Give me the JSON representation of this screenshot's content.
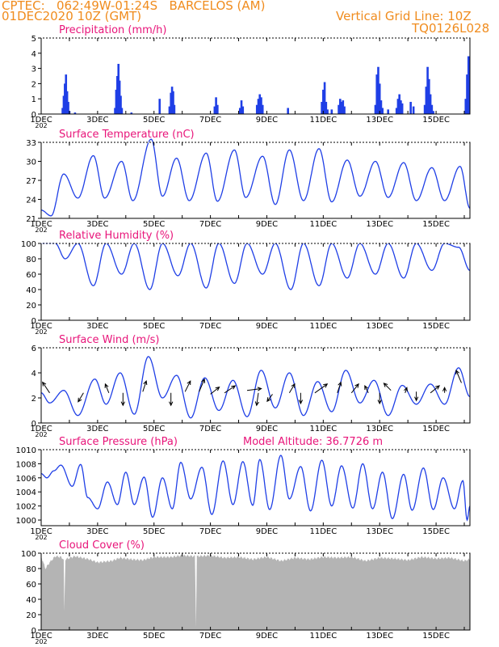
{
  "header": {
    "line1": "CPTEC:   062:49W-01:24S   BARCELOS (AM)",
    "line2": "01DEC2020 10Z (GMT)",
    "grid_note": "Vertical Grid Line: 10Z",
    "code": "TQ0126L028"
  },
  "colors": {
    "header": "#f08c1e",
    "title": "#e8157a",
    "series": "#1f3fe6",
    "cloud": "#b4b4b4",
    "axis": "#000000"
  },
  "x_axis": {
    "ticks": [
      {
        "day": 1,
        "label": "1DEC"
      },
      {
        "day": 3,
        "label": "3DEC"
      },
      {
        "day": 5,
        "label": "5DEC"
      },
      {
        "day": 7,
        "label": "7DEC"
      },
      {
        "day": 9,
        "label": "9DEC"
      },
      {
        "day": 11,
        "label": "11DEC"
      },
      {
        "day": 13,
        "label": "13DEC"
      },
      {
        "day": 15,
        "label": "15DEC"
      }
    ],
    "cut_label": "202"
  },
  "chart_data": [
    {
      "id": "precip",
      "type": "bar",
      "title": "Precipitation (mm/h)",
      "ylim": [
        0,
        5
      ],
      "yticks": [
        0,
        1,
        2,
        3,
        4,
        5
      ],
      "x_range_days": [
        1,
        16.2
      ],
      "hourly_points": [
        [
          1.76,
          0.4
        ],
        [
          1.8,
          1.2
        ],
        [
          1.84,
          2.0
        ],
        [
          1.88,
          2.6
        ],
        [
          1.92,
          1.5
        ],
        [
          1.96,
          0.8
        ],
        [
          2.0,
          0.2
        ],
        [
          2.2,
          0.1
        ],
        [
          3.62,
          0.4
        ],
        [
          3.66,
          1.6
        ],
        [
          3.7,
          2.5
        ],
        [
          3.74,
          3.3
        ],
        [
          3.78,
          2.2
        ],
        [
          3.82,
          1.2
        ],
        [
          3.86,
          0.4
        ],
        [
          4.2,
          0.1
        ],
        [
          5.2,
          1.0
        ],
        [
          5.55,
          0.5
        ],
        [
          5.6,
          1.4
        ],
        [
          5.64,
          1.8
        ],
        [
          5.68,
          1.5
        ],
        [
          5.72,
          0.6
        ],
        [
          7.15,
          0.5
        ],
        [
          7.2,
          1.1
        ],
        [
          7.25,
          0.6
        ],
        [
          8.05,
          0.4
        ],
        [
          8.1,
          0.9
        ],
        [
          8.15,
          0.5
        ],
        [
          8.65,
          0.6
        ],
        [
          8.7,
          1.0
        ],
        [
          8.75,
          1.3
        ],
        [
          8.8,
          1.1
        ],
        [
          8.85,
          0.6
        ],
        [
          9.75,
          0.4
        ],
        [
          10.95,
          0.8
        ],
        [
          11.0,
          1.6
        ],
        [
          11.05,
          2.1
        ],
        [
          11.1,
          0.8
        ],
        [
          11.15,
          0.3
        ],
        [
          11.3,
          0.3
        ],
        [
          11.55,
          0.6
        ],
        [
          11.6,
          1.0
        ],
        [
          11.65,
          0.8
        ],
        [
          11.7,
          0.9
        ],
        [
          11.75,
          0.5
        ],
        [
          12.85,
          0.6
        ],
        [
          12.9,
          2.6
        ],
        [
          12.95,
          3.1
        ],
        [
          13.0,
          2.0
        ],
        [
          13.05,
          0.9
        ],
        [
          13.1,
          0.4
        ],
        [
          13.3,
          0.3
        ],
        [
          13.6,
          0.4
        ],
        [
          13.65,
          1.0
        ],
        [
          13.7,
          1.3
        ],
        [
          13.75,
          0.9
        ],
        [
          13.8,
          0.7
        ],
        [
          14.1,
          0.8
        ],
        [
          14.2,
          0.5
        ],
        [
          14.6,
          0.6
        ],
        [
          14.65,
          1.8
        ],
        [
          14.7,
          3.1
        ],
        [
          14.75,
          2.3
        ],
        [
          14.8,
          1.3
        ],
        [
          14.85,
          0.6
        ],
        [
          14.9,
          0.2
        ],
        [
          16.05,
          1.0
        ],
        [
          16.1,
          2.6
        ],
        [
          16.15,
          3.8
        ]
      ]
    },
    {
      "id": "temp",
      "type": "line",
      "title": "Surface Temperature (nC)",
      "ylim": [
        21,
        33
      ],
      "yticks": [
        21,
        24,
        27,
        30,
        33
      ],
      "peaks_troughs": [
        [
          1.0,
          22.3
        ],
        [
          1.35,
          21.4
        ],
        [
          1.8,
          28.0
        ],
        [
          2.3,
          24.2
        ],
        [
          2.85,
          30.9
        ],
        [
          3.25,
          24.2
        ],
        [
          3.85,
          30.0
        ],
        [
          4.25,
          23.8
        ],
        [
          4.9,
          33.5
        ],
        [
          5.3,
          24.5
        ],
        [
          5.8,
          30.5
        ],
        [
          6.25,
          23.8
        ],
        [
          6.85,
          31.3
        ],
        [
          7.25,
          23.7
        ],
        [
          7.85,
          31.8
        ],
        [
          8.25,
          24.3
        ],
        [
          8.85,
          30.8
        ],
        [
          9.3,
          23.2
        ],
        [
          9.8,
          31.8
        ],
        [
          10.3,
          23.8
        ],
        [
          10.85,
          32.0
        ],
        [
          11.3,
          23.6
        ],
        [
          11.85,
          30.2
        ],
        [
          12.3,
          24.5
        ],
        [
          12.85,
          30.0
        ],
        [
          13.3,
          24.3
        ],
        [
          13.85,
          29.8
        ],
        [
          14.3,
          23.8
        ],
        [
          14.85,
          29.0
        ],
        [
          15.3,
          23.8
        ],
        [
          15.85,
          29.2
        ],
        [
          16.2,
          22.6
        ]
      ]
    },
    {
      "id": "humidity",
      "type": "line",
      "title": "Relative Humidity (%)",
      "ylim": [
        0,
        100
      ],
      "yticks": [
        0,
        20,
        40,
        60,
        80,
        100
      ],
      "peaks_troughs": [
        [
          1.0,
          100
        ],
        [
          1.5,
          100
        ],
        [
          1.85,
          80
        ],
        [
          2.3,
          100
        ],
        [
          2.85,
          45
        ],
        [
          3.3,
          100
        ],
        [
          3.85,
          60
        ],
        [
          4.3,
          100
        ],
        [
          4.85,
          40
        ],
        [
          5.3,
          100
        ],
        [
          5.85,
          58
        ],
        [
          6.3,
          100
        ],
        [
          6.85,
          42
        ],
        [
          7.3,
          100
        ],
        [
          7.85,
          48
        ],
        [
          8.3,
          100
        ],
        [
          8.85,
          60
        ],
        [
          9.3,
          100
        ],
        [
          9.85,
          40
        ],
        [
          10.3,
          100
        ],
        [
          10.85,
          45
        ],
        [
          11.3,
          100
        ],
        [
          11.85,
          55
        ],
        [
          12.3,
          100
        ],
        [
          12.85,
          60
        ],
        [
          13.3,
          100
        ],
        [
          13.85,
          55
        ],
        [
          14.3,
          100
        ],
        [
          14.85,
          65
        ],
        [
          15.3,
          100
        ],
        [
          15.8,
          95
        ],
        [
          16.2,
          65
        ]
      ]
    },
    {
      "id": "wind",
      "type": "line",
      "title": "Surface Wind (m/s)",
      "ylim": [
        0,
        6
      ],
      "yticks": [
        0,
        2,
        4,
        6
      ],
      "peaks_troughs": [
        [
          1.0,
          2.4
        ],
        [
          1.3,
          1.6
        ],
        [
          1.8,
          2.6
        ],
        [
          2.3,
          0.6
        ],
        [
          2.9,
          3.5
        ],
        [
          3.3,
          1.5
        ],
        [
          3.8,
          4.0
        ],
        [
          4.3,
          0.7
        ],
        [
          4.8,
          5.3
        ],
        [
          5.3,
          2.0
        ],
        [
          5.8,
          3.8
        ],
        [
          6.3,
          0.4
        ],
        [
          6.8,
          3.6
        ],
        [
          7.3,
          1.0
        ],
        [
          7.8,
          3.4
        ],
        [
          8.3,
          0.5
        ],
        [
          8.8,
          4.2
        ],
        [
          9.3,
          1.2
        ],
        [
          9.8,
          4.0
        ],
        [
          10.3,
          0.6
        ],
        [
          10.8,
          3.3
        ],
        [
          11.3,
          0.9
        ],
        [
          11.8,
          4.2
        ],
        [
          12.3,
          1.6
        ],
        [
          12.8,
          3.4
        ],
        [
          13.3,
          0.6
        ],
        [
          13.8,
          3.0
        ],
        [
          14.3,
          1.5
        ],
        [
          14.8,
          3.1
        ],
        [
          15.3,
          1.5
        ],
        [
          15.8,
          4.4
        ],
        [
          16.2,
          2.1
        ]
      ],
      "arrows": [
        [
          1.3,
          2.4,
          -0.4,
          0.6
        ],
        [
          2.5,
          2.4,
          -0.3,
          -0.5
        ],
        [
          3.4,
          2.4,
          -0.2,
          0.5
        ],
        [
          3.9,
          2.4,
          0.0,
          -0.7
        ],
        [
          4.6,
          2.5,
          0.2,
          0.6
        ],
        [
          5.6,
          2.4,
          0.0,
          -0.7
        ],
        [
          6.1,
          2.5,
          0.3,
          0.6
        ],
        [
          6.6,
          2.5,
          0.3,
          0.7
        ],
        [
          7.0,
          2.3,
          0.5,
          0.4
        ],
        [
          7.5,
          2.4,
          0.6,
          0.4
        ],
        [
          8.3,
          2.6,
          0.8,
          0.1
        ],
        [
          8.7,
          2.4,
          -0.1,
          -0.7
        ],
        [
          9.2,
          2.3,
          -0.3,
          -0.4
        ],
        [
          9.8,
          2.4,
          0.3,
          0.5
        ],
        [
          10.2,
          2.4,
          0.0,
          -0.6
        ],
        [
          10.7,
          2.4,
          0.7,
          0.5
        ],
        [
          11.5,
          2.4,
          0.2,
          0.6
        ],
        [
          12.0,
          2.4,
          0.4,
          0.5
        ],
        [
          12.6,
          2.4,
          -0.2,
          0.4
        ],
        [
          13.0,
          2.4,
          0.0,
          -0.6
        ],
        [
          13.4,
          2.6,
          -0.4,
          0.4
        ],
        [
          13.9,
          2.4,
          0.1,
          0.3
        ],
        [
          14.3,
          2.5,
          0.0,
          -0.5
        ],
        [
          14.8,
          2.4,
          0.5,
          0.4
        ],
        [
          15.3,
          2.4,
          0.0,
          0.3
        ],
        [
          15.9,
          3.2,
          -0.3,
          0.7
        ]
      ]
    },
    {
      "id": "pressure",
      "type": "line",
      "title": "Surface Pressure (hPa)",
      "annotation": "Model Altitude: 36.7726 m",
      "ylim": [
        999.2,
        1010
      ],
      "yticks": [
        1000,
        1002,
        1004,
        1006,
        1008,
        1010
      ],
      "peaks_troughs": [
        [
          1.0,
          1006.6
        ],
        [
          1.2,
          1006.0
        ],
        [
          1.45,
          1007.0
        ],
        [
          1.7,
          1007.8
        ],
        [
          2.1,
          1004.8
        ],
        [
          2.4,
          1007.9
        ],
        [
          2.65,
          1003.2
        ],
        [
          3.0,
          1001.6
        ],
        [
          3.35,
          1005.4
        ],
        [
          3.7,
          1002.2
        ],
        [
          4.0,
          1006.8
        ],
        [
          4.3,
          1002.2
        ],
        [
          4.65,
          1006.1
        ],
        [
          4.95,
          1000.4
        ],
        [
          5.3,
          1006.0
        ],
        [
          5.65,
          1001.6
        ],
        [
          5.95,
          1008.2
        ],
        [
          6.3,
          1003.0
        ],
        [
          6.7,
          1007.5
        ],
        [
          7.05,
          1000.8
        ],
        [
          7.45,
          1008.4
        ],
        [
          7.8,
          1002.2
        ],
        [
          8.15,
          1008.3
        ],
        [
          8.5,
          1002.1
        ],
        [
          8.75,
          1008.6
        ],
        [
          9.1,
          1001.5
        ],
        [
          9.5,
          1009.2
        ],
        [
          9.8,
          1003.0
        ],
        [
          10.2,
          1007.6
        ],
        [
          10.55,
          1001.3
        ],
        [
          10.95,
          1008.5
        ],
        [
          11.3,
          1002.0
        ],
        [
          11.65,
          1007.7
        ],
        [
          12.05,
          1001.7
        ],
        [
          12.4,
          1008.0
        ],
        [
          12.75,
          1001.6
        ],
        [
          13.1,
          1006.8
        ],
        [
          13.45,
          1000.2
        ],
        [
          13.85,
          1006.5
        ],
        [
          14.15,
          1001.4
        ],
        [
          14.55,
          1007.4
        ],
        [
          14.9,
          1001.5
        ],
        [
          15.25,
          1006.0
        ],
        [
          15.65,
          1001.6
        ],
        [
          15.95,
          1005.6
        ],
        [
          16.1,
          1000.0
        ],
        [
          16.2,
          1002.0
        ]
      ]
    },
    {
      "id": "cloud",
      "type": "area",
      "title": "Cloud Cover (%)",
      "ylim": [
        0,
        100
      ],
      "yticks": [
        0,
        20,
        40,
        60,
        80,
        100
      ],
      "points": [
        [
          1.0,
          96
        ],
        [
          1.15,
          80
        ],
        [
          1.3,
          88
        ],
        [
          1.5,
          96
        ],
        [
          1.7,
          95
        ],
        [
          1.8,
          92
        ],
        [
          1.82,
          25
        ],
        [
          1.86,
          92
        ],
        [
          2.2,
          96
        ],
        [
          2.7,
          92
        ],
        [
          3.0,
          88
        ],
        [
          3.5,
          90
        ],
        [
          3.8,
          94
        ],
        [
          4.2,
          92
        ],
        [
          4.6,
          91
        ],
        [
          5.0,
          95
        ],
        [
          5.6,
          95
        ],
        [
          6.0,
          97
        ],
        [
          6.45,
          96
        ],
        [
          6.49,
          4
        ],
        [
          6.52,
          96
        ],
        [
          7.0,
          97
        ],
        [
          7.5,
          94
        ],
        [
          8.0,
          95
        ],
        [
          8.5,
          92
        ],
        [
          9.0,
          95
        ],
        [
          9.5,
          90
        ],
        [
          10.0,
          94
        ],
        [
          10.5,
          92
        ],
        [
          11.0,
          95
        ],
        [
          11.5,
          94
        ],
        [
          12.0,
          95
        ],
        [
          12.5,
          90
        ],
        [
          13.0,
          94
        ],
        [
          13.5,
          93
        ],
        [
          14.0,
          91
        ],
        [
          14.5,
          95
        ],
        [
          15.0,
          93
        ],
        [
          15.5,
          94
        ],
        [
          16.0,
          90
        ],
        [
          16.2,
          92
        ]
      ]
    }
  ]
}
